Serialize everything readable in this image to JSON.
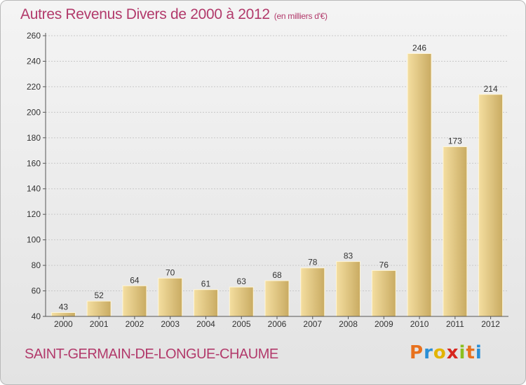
{
  "header": {
    "title": "Autres Revenus Divers de 2000 à 2012",
    "unit": "(en milliers d'€)"
  },
  "footer": {
    "place": "SAINT-GERMAIN-DE-LONGUE-CHAUME",
    "logo_letters": [
      "P",
      "r",
      "o",
      "x",
      "i",
      "t",
      "i"
    ],
    "logo_colors": [
      "#e8711d",
      "#2a8fd6",
      "#e2b400",
      "#d7261e",
      "#8bbf1f",
      "#e8711d",
      "#2a8fd6"
    ]
  },
  "chart_data": {
    "type": "bar",
    "title": "Autres Revenus Divers de 2000 à 2012",
    "categories": [
      "2000",
      "2001",
      "2002",
      "2003",
      "2004",
      "2005",
      "2006",
      "2007",
      "2008",
      "2009",
      "2010",
      "2011",
      "2012"
    ],
    "values": [
      43,
      52,
      64,
      70,
      61,
      63,
      68,
      78,
      83,
      76,
      246,
      173,
      214
    ],
    "ylim": [
      40,
      260
    ],
    "yticks": [
      40,
      60,
      80,
      100,
      120,
      140,
      160,
      180,
      200,
      220,
      240,
      260
    ],
    "grid": true,
    "colors": {
      "bar_light": "#f4dea0",
      "bar_dark": "#c9ab62",
      "axis": "#555555"
    }
  }
}
